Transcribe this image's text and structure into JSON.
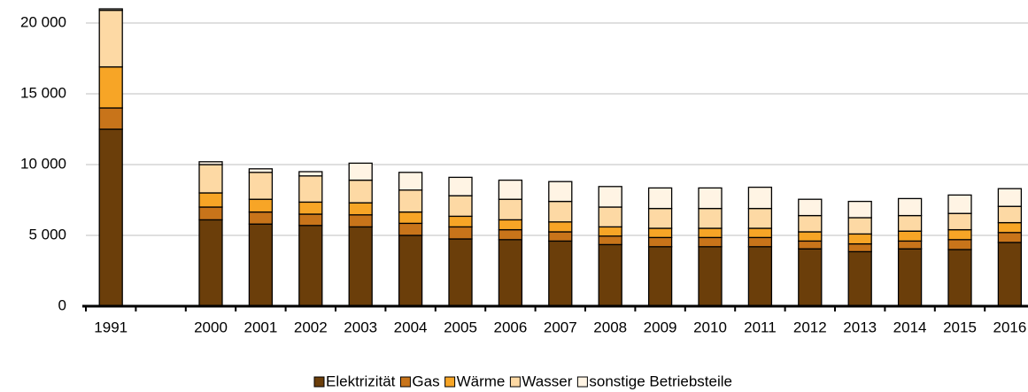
{
  "chart_data": {
    "type": "stacked_bar",
    "categories": [
      "1991",
      null,
      "2000",
      "2001",
      "2002",
      "2003",
      "2004",
      "2005",
      "2006",
      "2007",
      "2008",
      "2009",
      "2010",
      "2011",
      "2012",
      "2013",
      "2014",
      "2015",
      "2016"
    ],
    "series": [
      {
        "name": "Elektrizität",
        "color": "#6b3e0a",
        "values": [
          12500,
          null,
          6100,
          5800,
          5700,
          5600,
          5000,
          4750,
          4700,
          4600,
          4350,
          4200,
          4200,
          4200,
          4050,
          3850,
          4050,
          4000,
          4500
        ]
      },
      {
        "name": "Gas",
        "color": "#c8741a",
        "values": [
          1500,
          null,
          900,
          850,
          800,
          850,
          850,
          850,
          700,
          650,
          600,
          650,
          650,
          650,
          550,
          550,
          550,
          700,
          700
        ]
      },
      {
        "name": "Wärme",
        "color": "#f7a526",
        "values": [
          2900,
          null,
          1000,
          900,
          850,
          850,
          800,
          750,
          700,
          700,
          650,
          650,
          650,
          650,
          650,
          700,
          700,
          700,
          700
        ]
      },
      {
        "name": "Wasser",
        "color": "#fdd9a4",
        "values": [
          4000,
          null,
          2000,
          1900,
          1850,
          1600,
          1550,
          1450,
          1450,
          1450,
          1400,
          1400,
          1400,
          1400,
          1150,
          1150,
          1100,
          1150,
          1150
        ]
      },
      {
        "name": "sonstige Betriebsteile",
        "color": "#fff4e4",
        "values": [
          100,
          null,
          200,
          250,
          300,
          1200,
          1250,
          1300,
          1350,
          1400,
          1450,
          1450,
          1450,
          1500,
          1150,
          1150,
          1200,
          1300,
          1250
        ]
      }
    ],
    "ylim": [
      0,
      20000
    ],
    "yticks": [
      0,
      {
        "value": 5000,
        "label": "5 000"
      },
      {
        "value": 10000,
        "label": "10 000"
      },
      {
        "value": 15000,
        "label": "15 000"
      },
      {
        "value": 20000,
        "label": "20 000"
      }
    ],
    "grid": true,
    "legend": "bottom"
  }
}
